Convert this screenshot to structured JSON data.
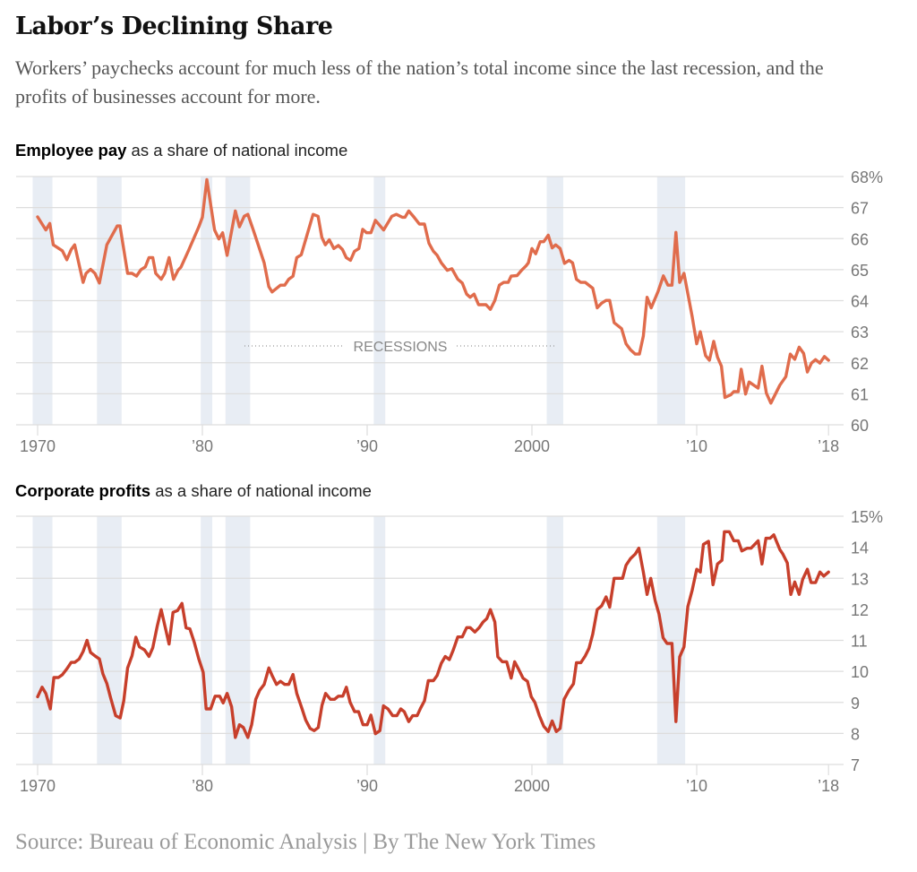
{
  "title": "Labor’s Declining Share",
  "subtitle": "Workers’ paychecks account for much less of the nation’s total income since the last recession, and the profits of businesses account for more.",
  "source": "Source: Bureau of Economic Analysis | By The New York Times",
  "colors": {
    "employee_line": "#e06c4c",
    "profits_line": "#c73f2b",
    "recession_shade": "#e8edf4",
    "grid": "#dddddd"
  },
  "chart_data": [
    {
      "type": "line",
      "title_bold": "Employee pay",
      "title_rest": " as a share of national income",
      "annotation": "RECESSIONS",
      "xlim": [
        1970,
        2018
      ],
      "ylim": [
        60,
        68
      ],
      "y_ticks": [
        "68%",
        "67",
        "66",
        "65",
        "64",
        "63",
        "62",
        "61",
        "60"
      ],
      "y_tick_values": [
        68,
        67,
        66,
        65,
        64,
        63,
        62,
        61,
        60
      ],
      "x_ticks": [
        "1970",
        "’80",
        "’90",
        "2000",
        "’10",
        "’18"
      ],
      "x_tick_values": [
        1970,
        1980,
        1990,
        2000,
        2010,
        2018
      ],
      "grid": true,
      "recessions": [
        [
          1969.7,
          1970.9
        ],
        [
          1973.6,
          1975.1
        ],
        [
          1979.9,
          1980.6
        ],
        [
          1981.4,
          1982.9
        ],
        [
          1990.4,
          1991.1
        ],
        [
          2000.9,
          2001.9
        ],
        [
          2007.6,
          2009.3
        ]
      ],
      "series": [
        {
          "x": [
            1970.0,
            1970.5,
            1970.74,
            1970.95,
            1971.5,
            1971.77,
            1972.04,
            1972.25,
            1972.76,
            1972.94,
            1973.21,
            1973.48,
            1973.75,
            1974.2,
            1974.83,
            1975.0,
            1975.46,
            1975.73,
            1976.0,
            1976.27,
            1976.54,
            1976.76,
            1976.99,
            1977.17,
            1977.5,
            1977.71,
            1977.98,
            1978.25,
            1978.52,
            1978.7,
            1979.15,
            1979.78,
            1980.0,
            1980.27,
            1980.74,
            1981.0,
            1981.23,
            1981.5,
            1982.0,
            1982.25,
            1982.54,
            1982.76,
            1983.12,
            1983.75,
            1984.03,
            1984.23,
            1984.74,
            1985.0,
            1985.24,
            1985.5,
            1985.73,
            1986.0,
            1986.35,
            1986.72,
            1987.02,
            1987.25,
            1987.46,
            1987.7,
            1987.98,
            1988.25,
            1988.5,
            1988.73,
            1988.99,
            1989.23,
            1989.5,
            1989.73,
            1989.96,
            1990.23,
            1990.5,
            1991.0,
            1991.5,
            1991.77,
            1992.13,
            1992.3,
            1992.52,
            1992.85,
            1993.17,
            1993.48,
            1993.75,
            1994.02,
            1994.25,
            1994.5,
            1994.86,
            1995.14,
            1995.5,
            1995.77,
            1996.04,
            1996.25,
            1996.49,
            1996.76,
            1997.21,
            1997.48,
            1997.75,
            1998.02,
            1998.29,
            1998.56,
            1998.74,
            1999.1,
            1999.37,
            1999.64,
            1999.78,
            2000.0,
            2000.23,
            2000.5,
            2000.72,
            2000.99,
            2001.23,
            2001.44,
            2001.71,
            2001.98,
            2002.25,
            2002.47,
            2002.7,
            2002.97,
            2003.24,
            2003.69,
            2003.96,
            2004.23,
            2004.5,
            2004.72,
            2004.99,
            2005.44,
            2005.71,
            2005.98,
            2006.27,
            2006.52,
            2006.76,
            2006.99,
            2007.24,
            2007.66,
            2007.98,
            2008.25,
            2008.5,
            2008.74,
            2008.97,
            2009.23,
            2009.73,
            2010.0,
            2010.22,
            2010.54,
            2010.77,
            2011.03,
            2011.26,
            2011.5,
            2011.71,
            2012.07,
            2012.25,
            2012.52,
            2012.7,
            2012.97,
            2013.18,
            2013.73,
            2013.96,
            2014.23,
            2014.5,
            2015.05,
            2015.41,
            2015.68,
            2015.95,
            2016.22,
            2016.49,
            2016.72,
            2016.97,
            2017.21,
            2017.48,
            2017.75,
            2018.0
          ],
          "y": [
            66.7,
            66.28,
            66.49,
            65.8,
            65.61,
            65.32,
            65.65,
            65.8,
            64.59,
            64.88,
            65.01,
            64.88,
            64.57,
            65.8,
            66.41,
            66.41,
            64.88,
            64.88,
            64.79,
            65.0,
            65.09,
            65.39,
            65.39,
            64.88,
            64.69,
            64.88,
            65.39,
            64.69,
            64.98,
            65.08,
            65.61,
            66.38,
            66.69,
            67.9,
            66.28,
            65.99,
            66.19,
            65.46,
            66.89,
            66.38,
            66.72,
            66.78,
            66.23,
            65.22,
            64.45,
            64.28,
            64.5,
            64.5,
            64.69,
            64.79,
            65.39,
            65.48,
            66.11,
            66.78,
            66.72,
            66.04,
            65.8,
            65.96,
            65.68,
            65.78,
            65.65,
            65.39,
            65.3,
            65.59,
            65.68,
            66.3,
            66.19,
            66.19,
            66.59,
            66.28,
            66.72,
            66.78,
            66.69,
            66.69,
            66.89,
            66.69,
            66.47,
            66.47,
            65.85,
            65.59,
            65.46,
            65.22,
            64.98,
            65.03,
            64.69,
            64.57,
            64.21,
            64.11,
            64.21,
            63.87,
            63.87,
            63.72,
            64.01,
            64.5,
            64.59,
            64.59,
            64.79,
            64.81,
            64.98,
            65.12,
            65.22,
            65.68,
            65.51,
            65.9,
            65.9,
            66.11,
            65.7,
            65.8,
            65.68,
            65.2,
            65.3,
            65.22,
            64.69,
            64.59,
            64.59,
            64.4,
            63.77,
            63.92,
            64.01,
            64.01,
            63.29,
            63.1,
            62.61,
            62.42,
            62.28,
            62.28,
            62.86,
            64.11,
            63.77,
            64.3,
            64.8,
            64.5,
            64.5,
            66.2,
            64.59,
            64.88,
            63.48,
            62.61,
            63.0,
            62.23,
            62.08,
            62.69,
            62.18,
            61.89,
            60.88,
            60.97,
            61.07,
            61.07,
            61.79,
            60.99,
            61.38,
            61.18,
            61.89,
            61.02,
            60.7,
            61.28,
            61.55,
            62.28,
            62.11,
            62.5,
            62.3,
            61.7,
            61.99,
            62.1,
            61.99,
            62.2,
            62.08
          ]
        }
      ]
    },
    {
      "type": "line",
      "title_bold": "Corporate profits",
      "title_rest": " as a share of national income",
      "xlim": [
        1970,
        2018
      ],
      "ylim": [
        7,
        15
      ],
      "y_ticks": [
        "15%",
        "14",
        "13",
        "12",
        "11",
        "10",
        "9",
        "8",
        "7"
      ],
      "y_tick_values": [
        15,
        14,
        13,
        12,
        11,
        10,
        9,
        8,
        7
      ],
      "x_ticks": [
        "1970",
        "’80",
        "’90",
        "2000",
        "’10",
        "’18"
      ],
      "x_tick_values": [
        1970,
        1980,
        1990,
        2000,
        2010,
        2018
      ],
      "grid": true,
      "recessions": [
        [
          1969.7,
          1970.9
        ],
        [
          1973.6,
          1975.1
        ],
        [
          1979.9,
          1980.6
        ],
        [
          1981.4,
          1982.9
        ],
        [
          1990.4,
          1991.1
        ],
        [
          2000.9,
          2001.9
        ],
        [
          2007.6,
          2009.3
        ]
      ],
      "series": [
        {
          "x": [
            1970.0,
            1970.27,
            1970.5,
            1970.77,
            1970.99,
            1971.26,
            1971.5,
            1971.77,
            1972.04,
            1972.25,
            1972.52,
            1972.76,
            1973.0,
            1973.21,
            1973.48,
            1973.75,
            1973.96,
            1974.2,
            1974.43,
            1974.74,
            1975.01,
            1975.23,
            1975.46,
            1975.73,
            1975.96,
            1976.18,
            1976.49,
            1976.76,
            1976.99,
            1977.26,
            1977.5,
            1977.98,
            1978.22,
            1978.49,
            1978.76,
            1979.01,
            1979.24,
            1979.51,
            1979.78,
            1980.05,
            1980.23,
            1980.5,
            1980.77,
            1981.05,
            1981.26,
            1981.5,
            1981.77,
            1982.0,
            1982.25,
            1982.49,
            1982.76,
            1982.99,
            1983.24,
            1983.48,
            1983.75,
            1984.03,
            1984.23,
            1984.5,
            1984.74,
            1985.0,
            1985.24,
            1985.5,
            1985.73,
            1986.04,
            1986.27,
            1986.54,
            1986.78,
            1987.03,
            1987.26,
            1987.48,
            1987.77,
            1988.02,
            1988.25,
            1988.52,
            1988.74,
            1988.97,
            1989.24,
            1989.48,
            1989.75,
            1990.0,
            1990.23,
            1990.5,
            1990.77,
            1990.99,
            1991.26,
            1991.55,
            1991.8,
            1992.04,
            1992.25,
            1992.52,
            1992.76,
            1993.03,
            1993.24,
            1993.48,
            1993.71,
            1994.02,
            1994.25,
            1994.5,
            1994.74,
            1994.99,
            1995.23,
            1995.5,
            1995.77,
            1996.04,
            1996.25,
            1996.54,
            1996.79,
            1997.03,
            1997.26,
            1997.48,
            1997.75,
            1997.93,
            1998.2,
            1998.47,
            1998.74,
            1998.95,
            1999.19,
            1999.46,
            1999.73,
            1999.96,
            2000.18,
            2000.45,
            2000.72,
            2000.99,
            2001.23,
            2001.48,
            2001.71,
            2001.95,
            2002.25,
            2002.52,
            2002.7,
            2002.97,
            2003.24,
            2003.46,
            2003.69,
            2003.96,
            2004.23,
            2004.5,
            2004.72,
            2004.99,
            2005.26,
            2005.5,
            2005.71,
            2005.98,
            2006.27,
            2006.49,
            2006.76,
            2006.99,
            2007.21,
            2007.48,
            2007.71,
            2007.96,
            2008.2,
            2008.5,
            2008.74,
            2008.97,
            2009.23,
            2009.46,
            2009.73,
            2010.0,
            2010.22,
            2010.41,
            2010.72,
            2010.99,
            2011.26,
            2011.53,
            2011.68,
            2011.98,
            2012.25,
            2012.52,
            2012.74,
            2013.06,
            2013.3,
            2013.73,
            2013.96,
            2014.2,
            2014.45,
            2014.68,
            2015.05,
            2015.23,
            2015.5,
            2015.71,
            2015.95,
            2016.22,
            2016.43,
            2016.72,
            2016.94,
            2017.21,
            2017.48,
            2017.71,
            2018.0
          ],
          "y": [
            9.18,
            9.49,
            9.29,
            8.79,
            9.8,
            9.8,
            9.89,
            10.08,
            10.29,
            10.29,
            10.4,
            10.64,
            11.0,
            10.61,
            10.5,
            10.4,
            9.92,
            9.61,
            9.15,
            8.57,
            8.5,
            9.05,
            10.11,
            10.5,
            11.1,
            10.79,
            10.69,
            10.48,
            10.76,
            11.46,
            11.99,
            10.88,
            11.9,
            11.96,
            12.19,
            11.4,
            11.37,
            10.93,
            10.4,
            9.97,
            8.79,
            8.79,
            9.2,
            9.2,
            8.98,
            9.29,
            8.86,
            7.87,
            8.28,
            8.19,
            7.87,
            8.28,
            9.1,
            9.39,
            9.58,
            10.11,
            9.87,
            9.58,
            9.68,
            9.58,
            9.58,
            9.9,
            9.29,
            8.81,
            8.43,
            8.16,
            8.09,
            8.19,
            8.91,
            9.29,
            9.1,
            9.1,
            9.2,
            9.2,
            9.49,
            9.0,
            8.7,
            8.7,
            8.28,
            8.28,
            8.59,
            7.99,
            8.09,
            8.89,
            8.79,
            8.57,
            8.57,
            8.79,
            8.7,
            8.38,
            8.57,
            8.57,
            8.81,
            9.05,
            9.7,
            9.7,
            9.87,
            10.26,
            10.48,
            10.38,
            10.69,
            11.11,
            11.11,
            11.41,
            11.41,
            11.27,
            11.4,
            11.59,
            11.7,
            11.99,
            11.59,
            10.47,
            10.31,
            10.31,
            9.78,
            10.31,
            10.07,
            9.78,
            9.68,
            9.18,
            9.0,
            8.57,
            8.23,
            8.06,
            8.4,
            8.06,
            8.16,
            9.1,
            9.39,
            9.6,
            10.28,
            10.28,
            10.5,
            10.74,
            11.2,
            11.99,
            12.11,
            12.4,
            12.07,
            13.0,
            13.0,
            13.0,
            13.42,
            13.63,
            13.78,
            13.97,
            13.2,
            12.48,
            13.0,
            12.28,
            11.85,
            11.08,
            10.9,
            10.9,
            8.38,
            10.47,
            10.79,
            12.09,
            12.62,
            13.29,
            13.2,
            14.09,
            14.19,
            12.79,
            13.46,
            13.58,
            14.5,
            14.5,
            14.21,
            14.21,
            13.88,
            13.97,
            13.97,
            14.21,
            13.46,
            14.29,
            14.29,
            14.4,
            13.92,
            13.78,
            13.49,
            12.48,
            12.88,
            12.48,
            12.96,
            13.29,
            12.86,
            12.86,
            13.2,
            13.07,
            13.2
          ]
        }
      ]
    }
  ]
}
